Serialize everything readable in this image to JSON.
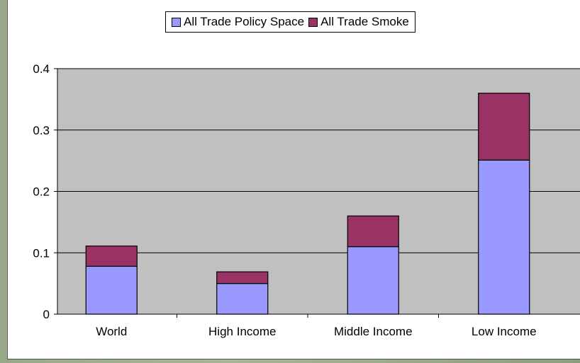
{
  "colors": {
    "series1": "#9999ff",
    "series2": "#993366",
    "plot_bg": "#c0c0c0"
  },
  "chart_data": {
    "type": "bar",
    "stacked": true,
    "categories": [
      "World",
      "High Income",
      "Middle Income",
      "Low  Income"
    ],
    "series": [
      {
        "name": "All Trade Policy Space",
        "values": [
          0.078,
          0.05,
          0.11,
          0.251
        ]
      },
      {
        "name": "All Trade Smoke",
        "values": [
          0.033,
          0.019,
          0.05,
          0.109
        ]
      }
    ],
    "ylim": [
      0,
      0.4
    ],
    "yticks": [
      {
        "value": 0,
        "label": "0"
      },
      {
        "value": 0.1,
        "label": "0.1"
      },
      {
        "value": 0.2,
        "label": "0.2"
      },
      {
        "value": 0.3,
        "label": "0.3"
      },
      {
        "value": 0.4,
        "label": "0.4"
      }
    ],
    "grid": true,
    "legend_position": "top"
  }
}
